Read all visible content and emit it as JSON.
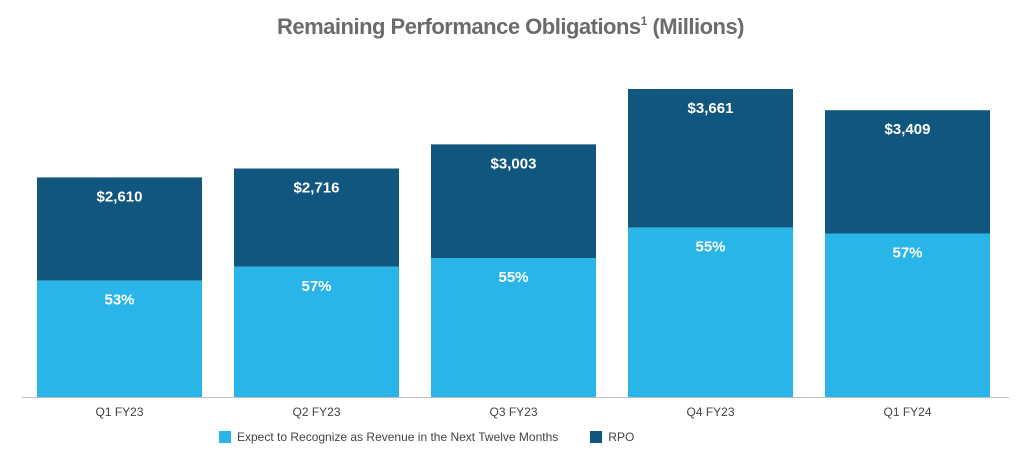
{
  "chart_data": {
    "type": "bar",
    "stacked": true,
    "title": "Remaining Performance Obligations",
    "title_superscript": "1",
    "title_suffix": " (Millions)",
    "categories": [
      "Q1 FY23",
      "Q2 FY23",
      "Q3 FY23",
      "Q4 FY23",
      "Q1 FY24"
    ],
    "totals": [
      2610,
      2716,
      3003,
      3661,
      3409
    ],
    "total_labels": [
      "$2,610",
      "$2,716",
      "$3,003",
      "$3,661",
      "$3,409"
    ],
    "current_pct": [
      53,
      57,
      55,
      55,
      57
    ],
    "pct_labels": [
      "53%",
      "57%",
      "55%",
      "55%",
      "57%"
    ],
    "series": [
      {
        "name": "Expect to Recognize as Revenue in the Next Twelve Months",
        "color": "#29b5e8"
      },
      {
        "name": "RPO",
        "color": "#11567f"
      }
    ],
    "ylim": [
      0,
      3661
    ],
    "legend_position": "bottom",
    "grid": false
  }
}
